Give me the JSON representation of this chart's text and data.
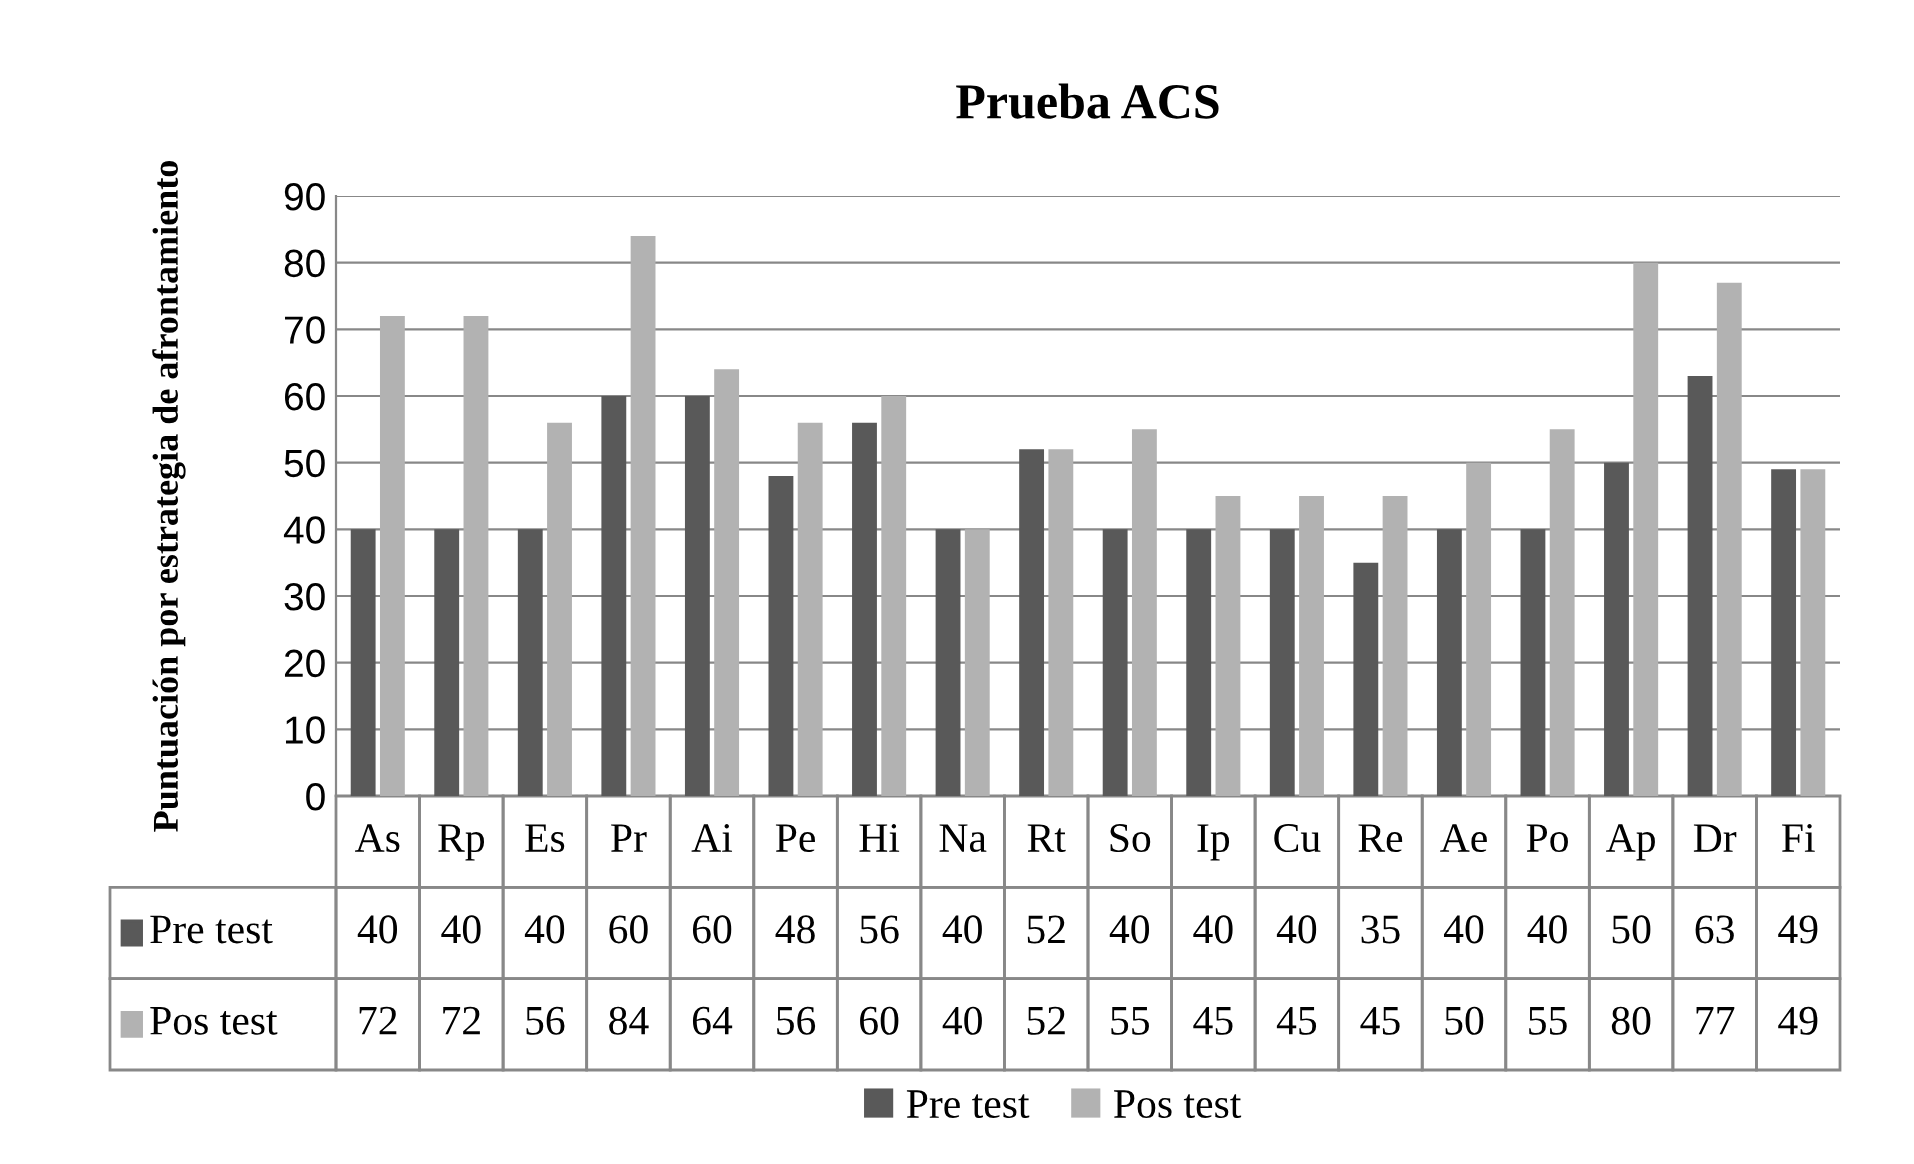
{
  "chart_data": {
    "type": "bar",
    "title": "Prueba ACS",
    "ylabel": "Puntuación por estrategia de afrontamiento",
    "categories": [
      "As",
      "Rp",
      "Es",
      "Pr",
      "Ai",
      "Pe",
      "Hi",
      "Na",
      "Rt",
      "So",
      "Ip",
      "Cu",
      "Re",
      "Ae",
      "Po",
      "Ap",
      "Dr",
      "Fi"
    ],
    "series": [
      {
        "name": "Pre test",
        "color": "#595959",
        "values": [
          40,
          40,
          40,
          60,
          60,
          48,
          56,
          40,
          52,
          40,
          40,
          40,
          35,
          40,
          40,
          50,
          63,
          49
        ]
      },
      {
        "name": "Pos test",
        "color": "#b2b2b2",
        "values": [
          72,
          72,
          56,
          84,
          64,
          56,
          60,
          40,
          52,
          55,
          45,
          45,
          45,
          50,
          55,
          80,
          77,
          49
        ]
      }
    ],
    "ylim": [
      0,
      90
    ],
    "yticks": [
      0,
      10,
      20,
      30,
      40,
      50,
      60,
      70,
      80,
      90
    ],
    "grid": "y",
    "legend": "bottom",
    "data_labels": true
  }
}
